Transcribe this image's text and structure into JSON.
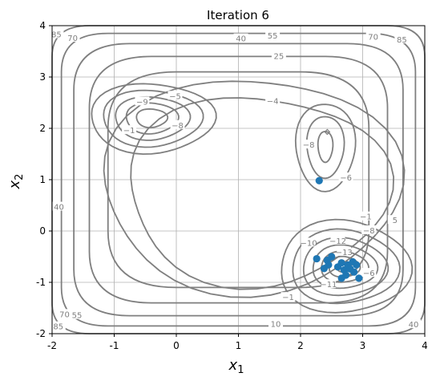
{
  "chart_data": {
    "type": "scatter",
    "title": "Iteration 6",
    "xlabel": "x",
    "xlabel_sub": "1",
    "ylabel": "x",
    "ylabel_sub": "2",
    "xlim": [
      -2,
      4
    ],
    "ylim": [
      -2,
      4
    ],
    "xticks": [
      -2,
      -1,
      0,
      1,
      2,
      3,
      4
    ],
    "yticks": [
      -2,
      -1,
      0,
      1,
      2,
      3,
      4
    ],
    "grid": true,
    "contour_levels_labeled": [
      "85",
      "70",
      "55",
      "40",
      "25",
      "10",
      "5",
      "-1",
      "-4",
      "-5",
      "-6",
      "-8",
      "-9",
      "-10",
      "-11",
      "-12",
      "-13"
    ],
    "contour_labels": [
      {
        "text": "85",
        "x": -1.93,
        "y": 3.82
      },
      {
        "text": "70",
        "x": -1.67,
        "y": 3.75
      },
      {
        "text": "40",
        "x": 1.04,
        "y": 3.74
      },
      {
        "text": "55",
        "x": 1.55,
        "y": 3.8
      },
      {
        "text": "25",
        "x": 1.65,
        "y": 3.4
      },
      {
        "text": "70",
        "x": 3.17,
        "y": 3.77
      },
      {
        "text": "85",
        "x": 3.63,
        "y": 3.72
      },
      {
        "text": "-9",
        "x": -0.55,
        "y": 2.51
      },
      {
        "text": "-5",
        "x": -0.02,
        "y": 2.62
      },
      {
        "text": "-4",
        "x": 1.55,
        "y": 2.52
      },
      {
        "text": "-8",
        "x": 0.02,
        "y": 2.05
      },
      {
        "text": "-1",
        "x": -0.76,
        "y": 1.95
      },
      {
        "text": "-8",
        "x": 2.13,
        "y": 1.67
      },
      {
        "text": "-6",
        "x": 2.73,
        "y": 1.03
      },
      {
        "text": "40",
        "x": -1.89,
        "y": 0.46
      },
      {
        "text": "-1",
        "x": 3.05,
        "y": 0.27
      },
      {
        "text": "-8",
        "x": 3.1,
        "y": 0.0
      },
      {
        "text": "5",
        "x": 3.52,
        "y": 0.2
      },
      {
        "text": "-12",
        "x": 2.6,
        "y": -0.2
      },
      {
        "text": "-13",
        "x": 2.7,
        "y": -0.42
      },
      {
        "text": "-10",
        "x": 2.13,
        "y": -0.24
      },
      {
        "text": "-6",
        "x": 3.1,
        "y": -0.83
      },
      {
        "text": "-11",
        "x": 2.45,
        "y": -1.05
      },
      {
        "text": "-1",
        "x": 1.8,
        "y": -1.3
      },
      {
        "text": "10",
        "x": 1.6,
        "y": -1.82
      },
      {
        "text": "70",
        "x": -1.8,
        "y": -1.63
      },
      {
        "text": "55",
        "x": -1.6,
        "y": -1.65
      },
      {
        "text": "85",
        "x": -1.9,
        "y": -1.87
      },
      {
        "text": "40",
        "x": 3.82,
        "y": -1.83
      }
    ],
    "series": [
      {
        "color": "#1f77b4",
        "points": [
          {
            "x": 2.3,
            "y": 0.98
          },
          {
            "x": 2.26,
            "y": -0.54
          },
          {
            "x": 2.43,
            "y": -0.57
          },
          {
            "x": 2.5,
            "y": -0.5
          },
          {
            "x": 2.38,
            "y": -0.73
          },
          {
            "x": 2.45,
            "y": -0.66
          },
          {
            "x": 2.6,
            "y": -0.7
          },
          {
            "x": 2.66,
            "y": -0.62
          },
          {
            "x": 2.7,
            "y": -0.76
          },
          {
            "x": 2.73,
            "y": -0.86
          },
          {
            "x": 2.76,
            "y": -0.66
          },
          {
            "x": 2.8,
            "y": -0.74
          },
          {
            "x": 2.84,
            "y": -0.6
          },
          {
            "x": 2.86,
            "y": -0.8
          },
          {
            "x": 2.9,
            "y": -0.66
          },
          {
            "x": 2.66,
            "y": -0.92
          },
          {
            "x": 2.94,
            "y": -0.92
          }
        ]
      }
    ],
    "colors": {
      "contour": "#7f7f7f",
      "points": "#1f77b4",
      "grid": "#b0b0b0"
    }
  }
}
